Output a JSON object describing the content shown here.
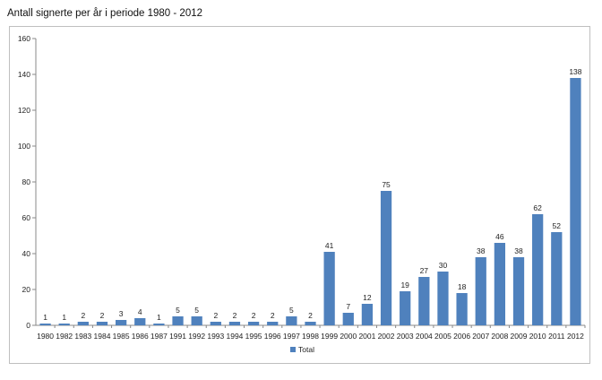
{
  "page": {
    "title": "Antall signerte per år i periode 1980 - 2012"
  },
  "chart_data": {
    "type": "bar",
    "title": "Antall signerte per år i periode 1980 - 2012",
    "xlabel": "",
    "ylabel": "",
    "categories": [
      "1980",
      "1982",
      "1983",
      "1984",
      "1985",
      "1986",
      "1987",
      "1991",
      "1992",
      "1993",
      "1994",
      "1995",
      "1996",
      "1997",
      "1998",
      "1999",
      "2000",
      "2001",
      "2002",
      "2003",
      "2004",
      "2005",
      "2006",
      "2007",
      "2008",
      "2009",
      "2010",
      "2011",
      "2012"
    ],
    "series": [
      {
        "name": "Total",
        "color": "#4f81bd",
        "values": [
          1,
          1,
          2,
          2,
          3,
          4,
          1,
          5,
          5,
          2,
          2,
          2,
          2,
          5,
          2,
          41,
          7,
          12,
          75,
          19,
          27,
          30,
          18,
          38,
          46,
          38,
          62,
          52,
          138
        ]
      }
    ],
    "ylim": [
      0,
      160
    ],
    "yticks": [
      0,
      20,
      40,
      60,
      80,
      100,
      120,
      140,
      160
    ],
    "data_labels": true,
    "grid": false,
    "legend": "bottom"
  }
}
